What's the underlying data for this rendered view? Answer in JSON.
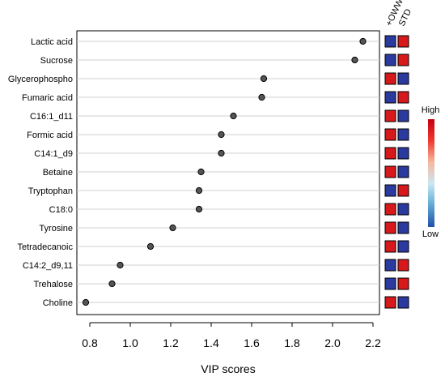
{
  "chart_data": {
    "type": "scatter",
    "title": "",
    "xlabel": "VIP scores",
    "ylabel": "",
    "xlim": [
      0.75,
      2.22
    ],
    "x_ticks": [
      0.8,
      1.0,
      1.2,
      1.4,
      1.6,
      1.8,
      2.0,
      2.2
    ],
    "x_tick_labels": [
      "0.8",
      "1.0",
      "1.2",
      "1.4",
      "1.6",
      "1.8",
      "2.0",
      "2.2"
    ],
    "grid": "horizontal",
    "categories": [
      "Lactic acid",
      "Sucrose",
      "Glycerophospho",
      "Fumaric acid",
      "C16:1_d11",
      "Formic acid",
      "C14:1_d9",
      "Betaine",
      "Tryptophan",
      "C18:0",
      "Tyrosine",
      "Tetradecanoic",
      "C14:2_d9,11",
      "Trehalose",
      "Choline"
    ],
    "values": [
      2.15,
      2.11,
      1.66,
      1.65,
      1.51,
      1.45,
      1.45,
      1.35,
      1.34,
      1.34,
      1.21,
      1.1,
      0.95,
      0.91,
      0.78
    ],
    "point_color": "#555555",
    "heatmap": {
      "columns": [
        "+OWW",
        "STD"
      ],
      "levels": [
        [
          "low",
          "high"
        ],
        [
          "low",
          "high"
        ],
        [
          "high",
          "low"
        ],
        [
          "low",
          "high"
        ],
        [
          "high",
          "low"
        ],
        [
          "high",
          "low"
        ],
        [
          "high",
          "low"
        ],
        [
          "high",
          "low"
        ],
        [
          "low",
          "high"
        ],
        [
          "high",
          "low"
        ],
        [
          "high",
          "low"
        ],
        [
          "high",
          "low"
        ],
        [
          "low",
          "high"
        ],
        [
          "low",
          "high"
        ],
        [
          "high",
          "low"
        ]
      ],
      "colors": {
        "high": "#d7191c",
        "low": "#2b3a9e"
      }
    },
    "legend": {
      "high_label": "High",
      "low_label": "Low",
      "placement": "right",
      "gradient": [
        "#c40010",
        "#ee3a2e",
        "#f7b8a0",
        "#c9e8f2",
        "#5fa8d3",
        "#2050a8"
      ]
    }
  }
}
